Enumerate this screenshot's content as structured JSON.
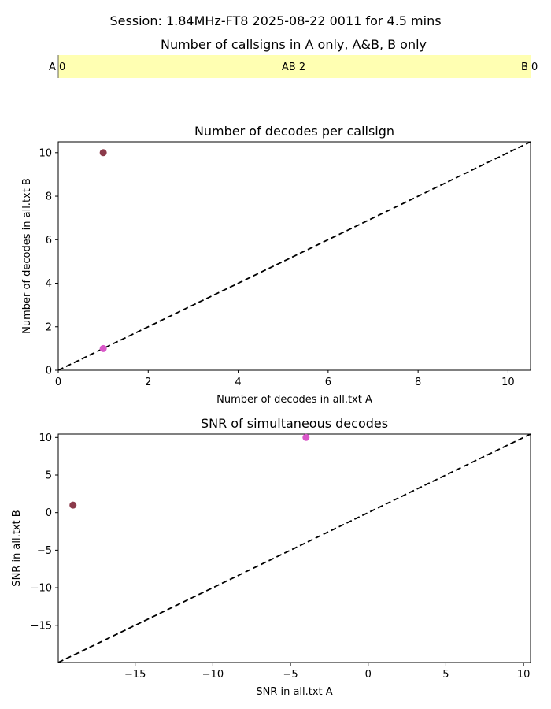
{
  "suptitle": "Session: 1.84MHz-FT8 2025-08-22 0011 for 4.5 mins",
  "colors": {
    "bar_fill": "#ffffb2",
    "point_dark": "#8b3a4a",
    "point_pink": "#d957c8",
    "diagonal": "#000000"
  },
  "chart_data": [
    {
      "type": "bar",
      "title": "Number of callsigns in A only, A&B, B only",
      "segments": [
        {
          "label": "A",
          "value": 0,
          "text": "A 0"
        },
        {
          "label": "AB",
          "value": 2,
          "text": "AB 2"
        },
        {
          "label": "B",
          "value": 0,
          "text": "B 0"
        }
      ],
      "grid": false
    },
    {
      "type": "scatter",
      "title": "Number of decodes per callsign",
      "xlabel": "Number of decodes in all.txt A",
      "ylabel": "Number of decodes in all.txt B",
      "xlim": [
        0,
        10.5
      ],
      "ylim": [
        0,
        10.5
      ],
      "xticks": [
        0,
        2,
        4,
        6,
        8,
        10
      ],
      "yticks": [
        0,
        2,
        4,
        6,
        8,
        10
      ],
      "diagonal": [
        [
          0,
          0
        ],
        [
          10.5,
          10.5
        ]
      ],
      "points": [
        {
          "x": 1,
          "y": 10,
          "color": "#8b3a4a"
        },
        {
          "x": 1,
          "y": 1,
          "color": "#d957c8"
        }
      ],
      "grid": false
    },
    {
      "type": "scatter",
      "title": "SNR of simultaneous decodes",
      "xlabel": "SNR in all.txt A",
      "ylabel": "SNR in all.txt B",
      "xlim": [
        -19.95,
        10.45
      ],
      "ylim": [
        -19.95,
        10.45
      ],
      "xticks": [
        -15,
        -10,
        -5,
        0,
        5,
        10
      ],
      "yticks": [
        -15,
        -10,
        -5,
        0,
        5,
        10
      ],
      "diagonal": [
        [
          -19.95,
          -19.95
        ],
        [
          10.45,
          10.45
        ]
      ],
      "points": [
        {
          "x": -19,
          "y": 1,
          "color": "#8b3a4a"
        },
        {
          "x": -4,
          "y": 10,
          "color": "#d957c8"
        }
      ],
      "grid": false
    }
  ]
}
